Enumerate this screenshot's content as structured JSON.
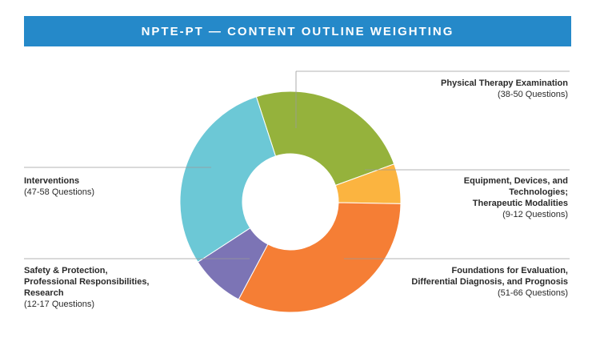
{
  "header": {
    "title": "NPTE-PT — CONTENT OUTLINE WEIGHTING"
  },
  "chart_data": {
    "type": "pie",
    "variant": "donut",
    "title": "NPTE-PT — CONTENT OUTLINE WEIGHTING",
    "slices": [
      {
        "name": "Physical Therapy Examination",
        "detail": "38-50 Questions",
        "value": 44,
        "color": "#95b23c"
      },
      {
        "name": "Equipment, Devices, and Technologies; Therapeutic Modalities",
        "detail": "9-12 Questions",
        "value": 10.5,
        "color": "#fbb440"
      },
      {
        "name": "Foundations for Evaluation, Differential Diagnosis, and Prognosis",
        "detail": "51-66 Questions",
        "value": 58.5,
        "color": "#f57e35"
      },
      {
        "name": "Safety & Protection, Professional Responsibilities, Research",
        "detail": "12-17 Questions",
        "value": 14.5,
        "color": "#7c74b5"
      },
      {
        "name": "Interventions",
        "detail": "47-58 Questions",
        "value": 52.5,
        "color": "#6cc8d6"
      }
    ]
  },
  "labels": {
    "exam": {
      "lines": [
        "Physical Therapy Examination"
      ],
      "count": "(38-50 Questions)"
    },
    "equipment": {
      "lines": [
        "Equipment, Devices, and",
        "Technologies;",
        "Therapeutic Modalities"
      ],
      "count": "(9-12 Questions)"
    },
    "foundations": {
      "lines": [
        "Foundations for Evaluation,",
        "Differential Diagnosis, and Prognosis"
      ],
      "count": "(51-66 Questions)"
    },
    "safety": {
      "lines": [
        "Safety & Protection,",
        "Professional Responsibilities,",
        "Research"
      ],
      "count": "(12-17 Questions)"
    },
    "interventions": {
      "lines": [
        "Interventions"
      ],
      "count": "(47-58 Questions)"
    }
  }
}
